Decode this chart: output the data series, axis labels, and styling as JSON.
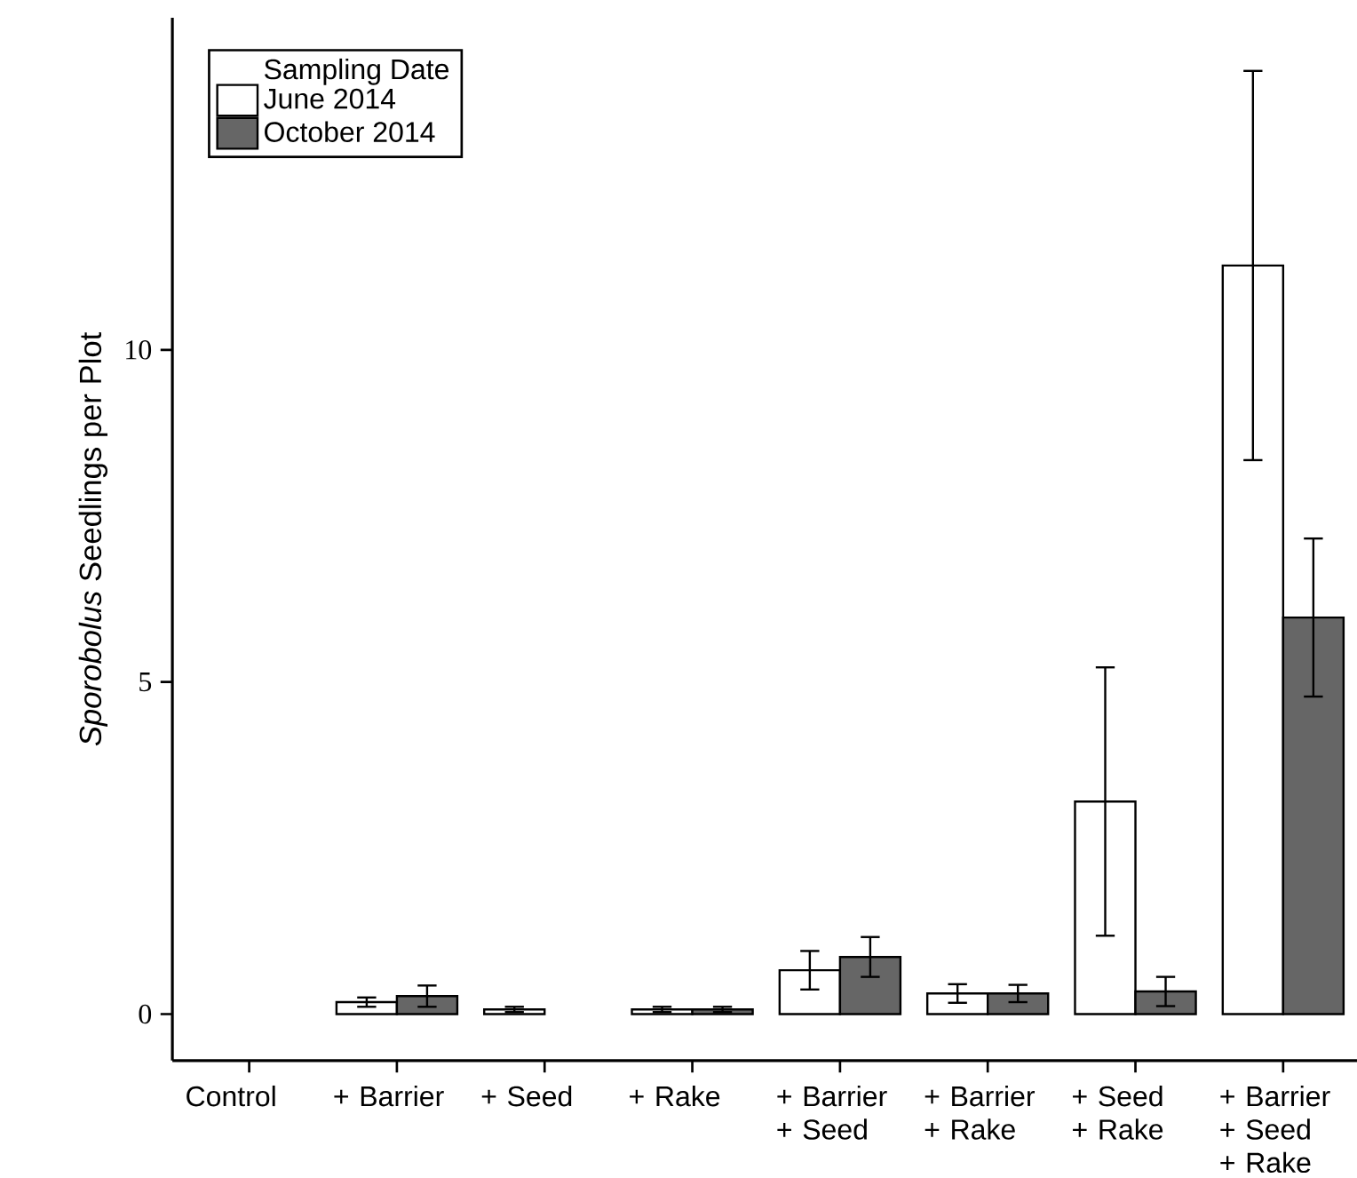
{
  "chart_data": {
    "type": "bar",
    "ylabel": "*Sporobolus* Seedlings per Plot",
    "legend_title": "Sampling Date",
    "legend": "top left",
    "categories": [
      "Control",
      "+ Barrier",
      "+ Seed",
      "+ Rake",
      "+ Barrier + Seed",
      "+ Barrier + Rake",
      "+ Seed + Rake",
      "+ Barrier + Seed + Rake"
    ],
    "series": [
      {
        "name": "June 2014",
        "color": "#ffffff",
        "values": [
          0,
          0.18,
          0.07,
          0.07,
          0.66,
          0.31,
          3.2,
          11.27
        ],
        "errors": [
          null,
          0.07,
          0.04,
          0.04,
          0.29,
          0.14,
          2.02,
          2.93
        ]
      },
      {
        "name": "October 2014",
        "color": "#666666",
        "values": [
          0,
          0.27,
          0,
          0.07,
          0.86,
          0.31,
          0.34,
          5.97
        ],
        "errors": [
          null,
          0.16,
          null,
          0.04,
          0.3,
          0.13,
          0.22,
          1.19
        ]
      }
    ],
    "ylim": [
      -0.7,
      15
    ],
    "yticks": [
      0,
      5,
      10
    ]
  }
}
